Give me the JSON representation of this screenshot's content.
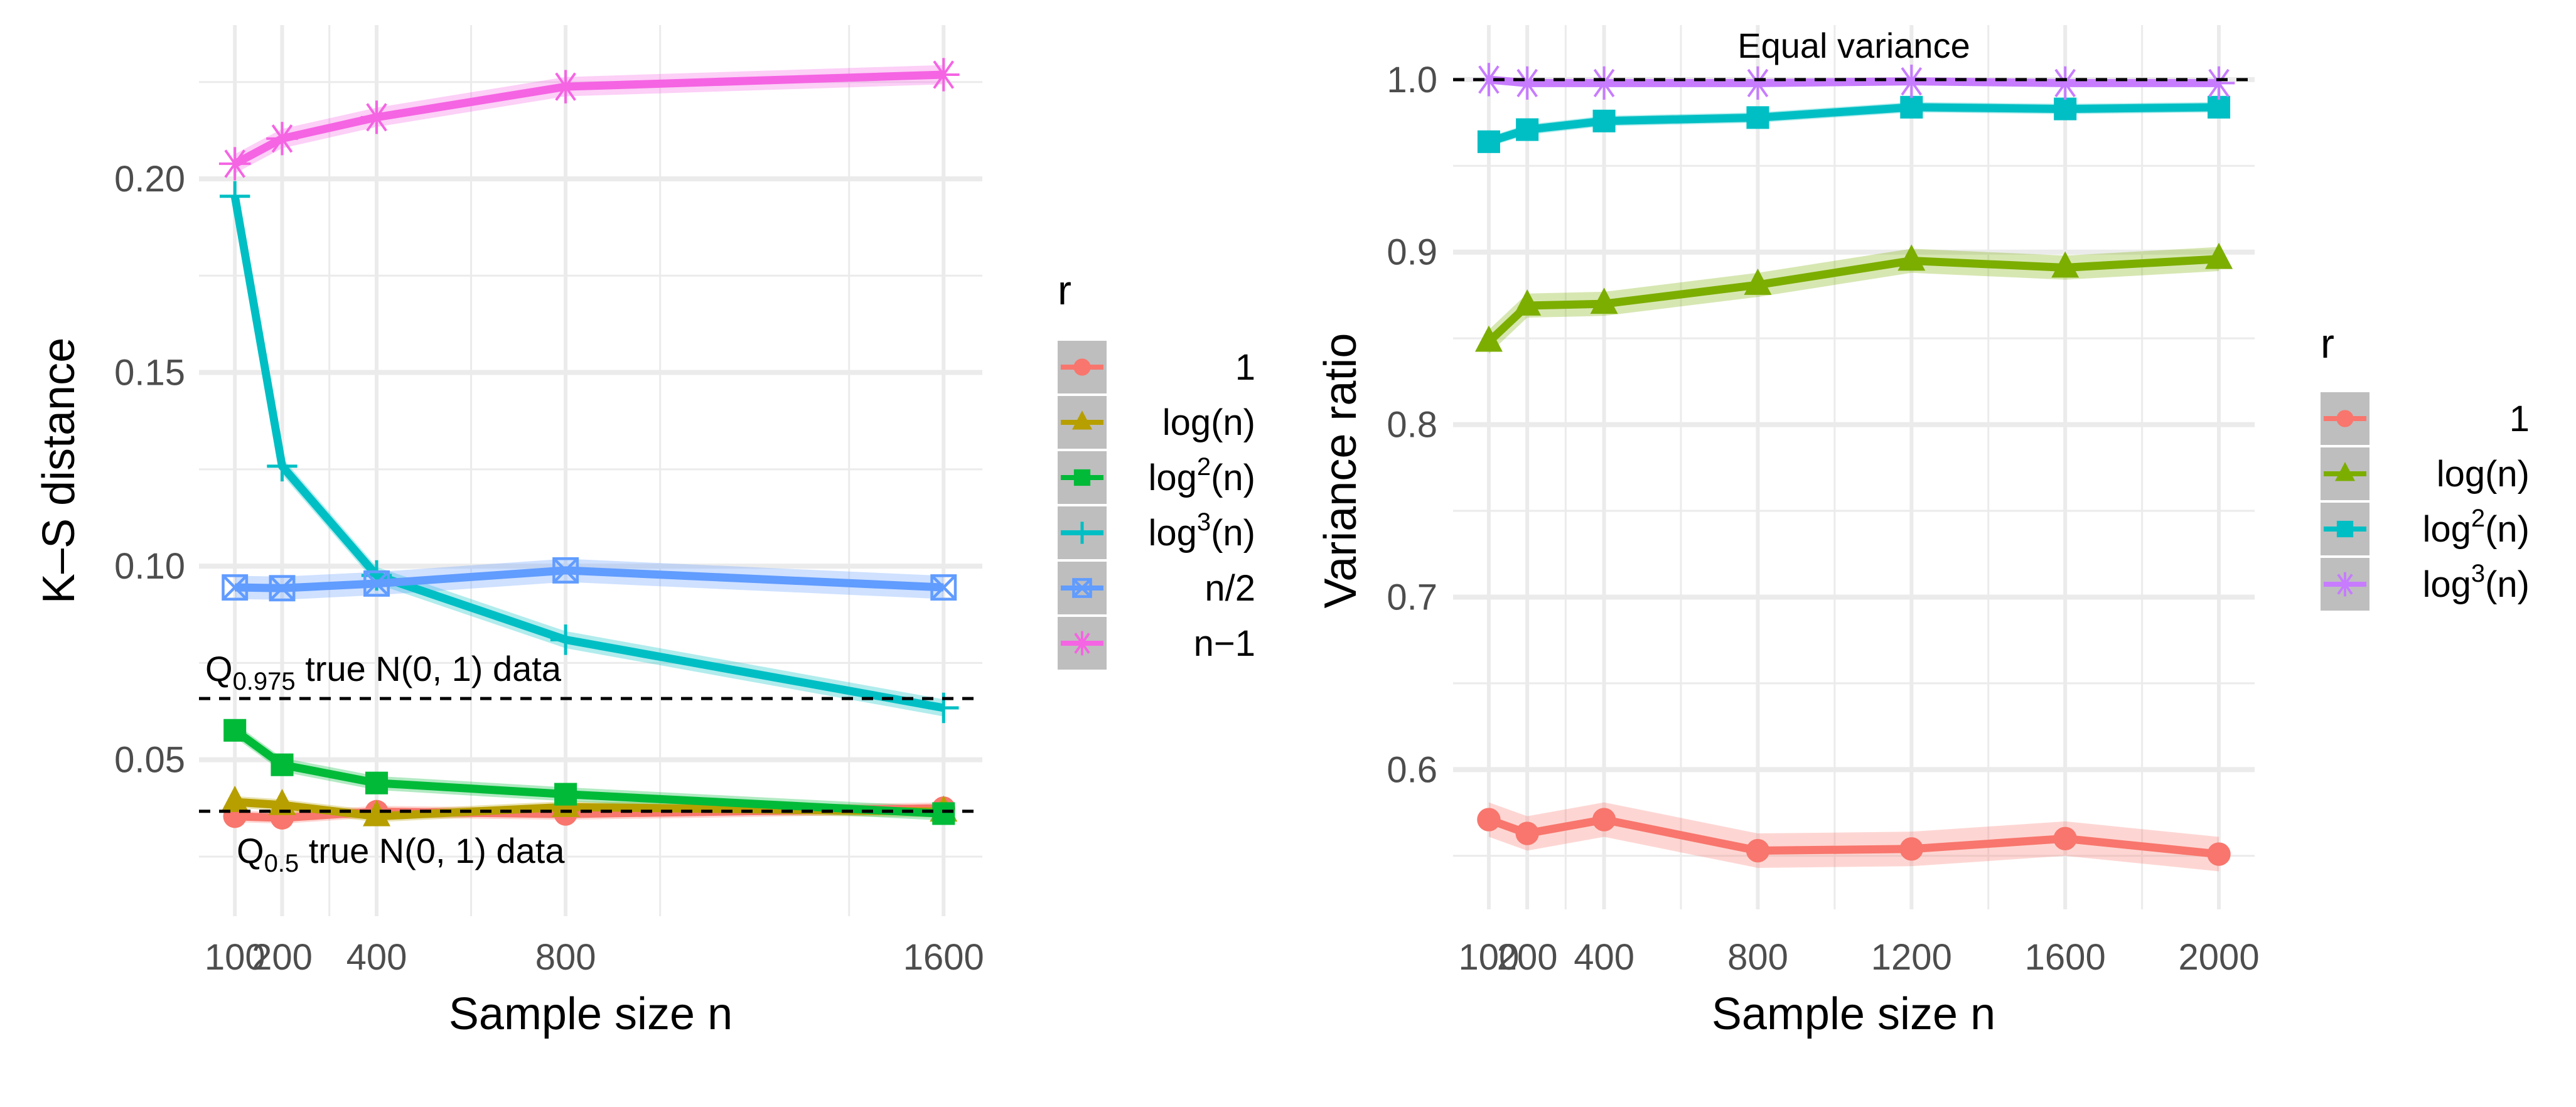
{
  "chart_data": [
    {
      "type": "line",
      "panel": "left",
      "title": "",
      "xlabel": "Sample size n",
      "ylabel": "K–S distance",
      "x": [
        100,
        200,
        400,
        800,
        1600
      ],
      "xticks": [
        100,
        200,
        400,
        800,
        1600
      ],
      "xtick_labels": [
        "100",
        "200",
        "400",
        "800",
        "1600"
      ],
      "xlim": [
        24,
        1682
      ],
      "yticks": [
        0.05,
        0.1,
        0.15,
        0.2
      ],
      "ytick_labels": [
        "0.05",
        "0.10",
        "0.15",
        "0.20"
      ],
      "ylim": [
        0.0096,
        0.2397
      ],
      "grid": true,
      "legend": {
        "title": "r",
        "placement": "right",
        "entries": [
          "1",
          "log(n)",
          "log2(n)",
          "log3(n)",
          "n/2",
          "n−1"
        ]
      },
      "series": [
        {
          "name": "1",
          "label_main": "1",
          "label_sup": "",
          "label_tail": "",
          "color": "#F8766D",
          "shape": "circle",
          "values": [
            0.0354,
            0.035,
            0.0366,
            0.036,
            0.0375
          ],
          "band": 0.0015
        },
        {
          "name": "log(n)",
          "label_main": "log(n)",
          "label_sup": "",
          "label_tail": "",
          "color": "#B79F00",
          "shape": "triangle",
          "values": [
            0.0391,
            0.0383,
            0.0354,
            0.0378,
            0.0366
          ],
          "band": 0.0015
        },
        {
          "name": "log2(n)",
          "label_main": "log",
          "label_sup": "2",
          "label_tail": "(n)",
          "color": "#00BA38",
          "shape": "square",
          "values": [
            0.0576,
            0.0487,
            0.044,
            0.0411,
            0.0361
          ],
          "band": 0.0018
        },
        {
          "name": "log3(n)",
          "label_main": "log",
          "label_sup": "3",
          "label_tail": "(n)",
          "color": "#00BFC4",
          "shape": "plus",
          "values": [
            0.1955,
            0.1258,
            0.0976,
            0.081,
            0.0634
          ],
          "band": 0.0022
        },
        {
          "name": "n/2",
          "label_main": "n/2",
          "label_sup": "",
          "label_tail": "",
          "color": "#619CFF",
          "shape": "square-x",
          "values": [
            0.0945,
            0.0943,
            0.0955,
            0.0989,
            0.0945
          ],
          "band": 0.003
        },
        {
          "name": "n−1",
          "label_main": "n−1",
          "label_sup": "",
          "label_tail": "",
          "color": "#F564E3",
          "shape": "asterisk",
          "values": [
            0.2039,
            0.2104,
            0.2159,
            0.2238,
            0.2269
          ],
          "band": 0.0025
        }
      ],
      "reference_lines": [
        {
          "value": 0.0658,
          "label_main": "Q",
          "label_sub": "0.975",
          "label_tail": " true N(0, 1) data",
          "label_position": "above-left"
        },
        {
          "value": 0.0367,
          "label_main": "Q",
          "label_sub": "0.5",
          "label_tail": " true N(0, 1) data",
          "label_position": "below-left"
        }
      ]
    },
    {
      "type": "line",
      "panel": "right",
      "title": "",
      "xlabel": "Sample size n",
      "ylabel": "Variance ratio",
      "x": [
        100,
        200,
        400,
        800,
        1200,
        1600,
        2000
      ],
      "xticks": [
        100,
        200,
        400,
        800,
        1200,
        1600,
        2000
      ],
      "xtick_labels": [
        "100",
        "200",
        "400",
        "800",
        "1200",
        "1600",
        "2000"
      ],
      "xlim": [
        7,
        2093
      ],
      "yticks": [
        0.6,
        0.7,
        0.8,
        0.9,
        1.0
      ],
      "ytick_labels": [
        "0.6",
        "0.7",
        "0.8",
        "0.9",
        "1.0"
      ],
      "ylim": [
        0.519,
        1.0316
      ],
      "grid": true,
      "legend": {
        "title": "r",
        "placement": "right",
        "entries": [
          "1",
          "log(n)",
          "log2(n)",
          "log3(n)"
        ]
      },
      "series": [
        {
          "name": "1",
          "label_main": "1",
          "label_sup": "",
          "label_tail": "",
          "color": "#F8766D",
          "shape": "circle",
          "values": [
            0.571,
            0.563,
            0.571,
            0.553,
            0.554,
            0.56,
            0.551
          ],
          "band": 0.01
        },
        {
          "name": "log(n)",
          "label_main": "log(n)",
          "label_sup": "",
          "label_tail": "",
          "color": "#7CAE00",
          "shape": "triangle",
          "values": [
            0.848,
            0.869,
            0.87,
            0.881,
            0.895,
            0.891,
            0.896
          ],
          "band": 0.007
        },
        {
          "name": "log2(n)",
          "label_main": "log",
          "label_sup": "2",
          "label_tail": "(n)",
          "color": "#00BFC4",
          "shape": "square",
          "values": [
            0.964,
            0.971,
            0.976,
            0.978,
            0.984,
            0.983,
            0.984
          ],
          "band": 0.003
        },
        {
          "name": "log3(n)",
          "label_main": "log",
          "label_sup": "3",
          "label_tail": "(n)",
          "color": "#C77CFF",
          "shape": "asterisk",
          "values": [
            1.0,
            0.998,
            0.998,
            0.998,
            0.999,
            0.998,
            0.998
          ],
          "band": 0.001
        }
      ],
      "reference_lines": [
        {
          "value": 1.0,
          "label_main": "Equal variance",
          "label_sub": "",
          "label_tail": "",
          "label_position": "above-center"
        }
      ]
    }
  ]
}
